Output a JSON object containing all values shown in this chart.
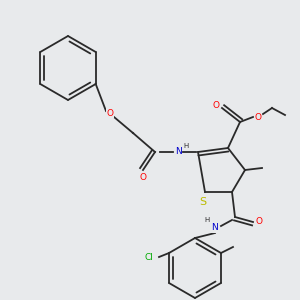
{
  "background_color": "#e8eaec",
  "bond_color": "#2a2a2a",
  "atom_colors": {
    "O": "#ff0000",
    "N": "#0000cc",
    "S": "#bbbb00",
    "Cl": "#00aa00",
    "C": "#2a2a2a",
    "H": "#2a2a2a"
  },
  "figsize": [
    3.0,
    3.0
  ],
  "dpi": 100,
  "lw": 1.3,
  "fs": 6.0
}
